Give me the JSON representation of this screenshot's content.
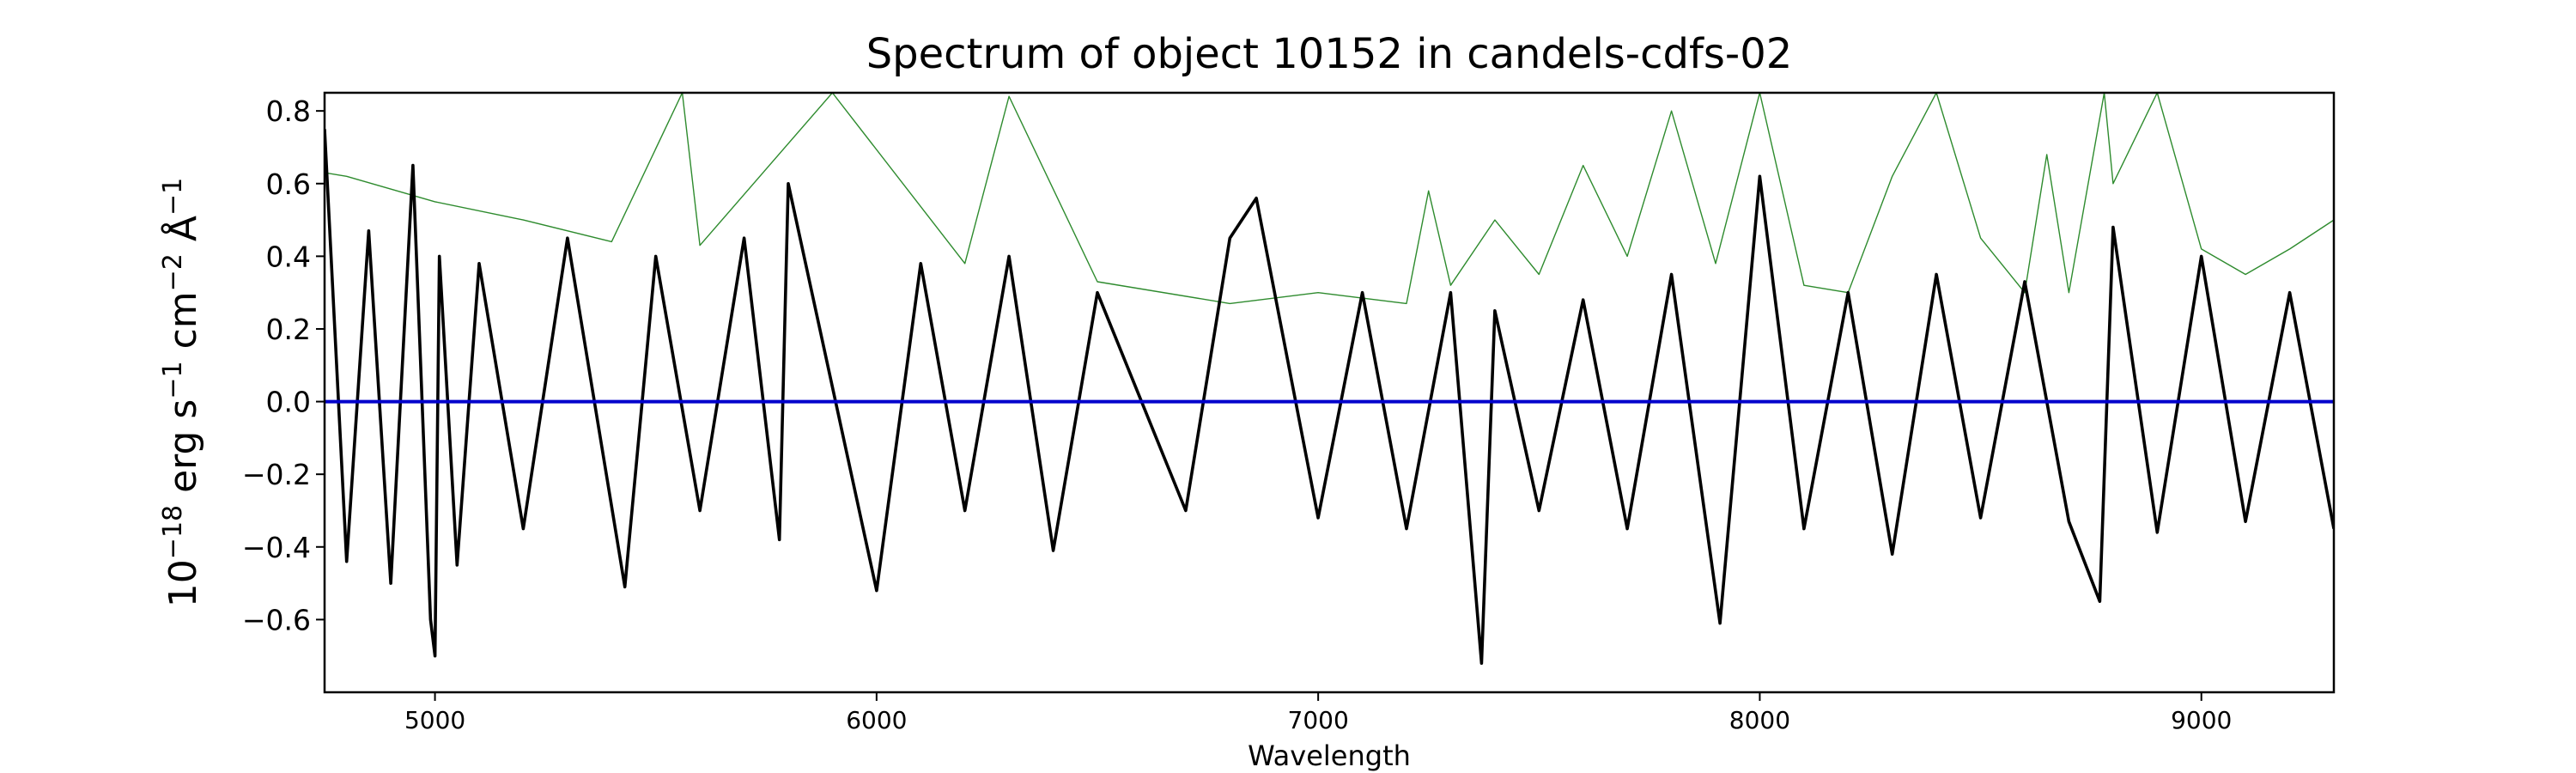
{
  "chart_data": {
    "type": "line",
    "title": "Spectrum of object 10152 in candels-cdfs-02",
    "xlabel": "Wavelength",
    "ylabel": {
      "prefix": "10",
      "exponent": "−18",
      "units": [
        {
          "base": " erg s",
          "sup": "−1"
        },
        {
          "base": " cm",
          "sup": "−2"
        },
        {
          "base": " Å",
          "sup": "−1"
        }
      ]
    },
    "xlim": [
      4750,
      9300
    ],
    "ylim": [
      -0.8,
      0.85
    ],
    "xticks": [
      5000,
      6000,
      7000,
      8000,
      9000
    ],
    "xtick_labels": [
      "5000",
      "6000",
      "7000",
      "8000",
      "9000"
    ],
    "yticks": [
      -0.6,
      -0.4,
      -0.2,
      0.0,
      0.2,
      0.4,
      0.6,
      0.8
    ],
    "ytick_labels": [
      "−0.6",
      "−0.4",
      "−0.2",
      "0.0",
      "0.2",
      "0.4",
      "0.6",
      "0.8"
    ],
    "grid": false,
    "colors": {
      "flux": "#000000",
      "error": "#2e8b2e",
      "zero": "#0000cc"
    },
    "series": [
      {
        "key": "flux",
        "x": [
          4750,
          4800,
          4850,
          4900,
          4950,
          4990,
          5000,
          5010,
          5050,
          5100,
          5200,
          5300,
          5430,
          5500,
          5600,
          5700,
          5780,
          5800,
          6000,
          6100,
          6200,
          6300,
          6400,
          6500,
          6700,
          6800,
          6860,
          7000,
          7100,
          7200,
          7300,
          7370,
          7400,
          7500,
          7600,
          7700,
          7800,
          7910,
          8000,
          8100,
          8200,
          8300,
          8400,
          8500,
          8600,
          8700,
          8770,
          8800,
          8900,
          9000,
          9100,
          9200,
          9300
        ],
        "y": [
          0.75,
          -0.44,
          0.47,
          -0.5,
          0.65,
          -0.6,
          -0.7,
          0.4,
          -0.45,
          0.38,
          -0.35,
          0.45,
          -0.51,
          0.4,
          -0.3,
          0.45,
          -0.38,
          0.6,
          -0.52,
          0.38,
          -0.3,
          0.4,
          -0.41,
          0.3,
          -0.3,
          0.45,
          0.56,
          -0.32,
          0.3,
          -0.35,
          0.3,
          -0.72,
          0.25,
          -0.3,
          0.28,
          -0.35,
          0.35,
          -0.61,
          0.62,
          -0.35,
          0.3,
          -0.42,
          0.35,
          -0.32,
          0.33,
          -0.33,
          -0.55,
          0.48,
          -0.36,
          0.4,
          -0.33,
          0.3,
          -0.35
        ]
      },
      {
        "key": "error",
        "x": [
          4750,
          4800,
          5000,
          5200,
          5400,
          5560,
          5600,
          5900,
          6200,
          6300,
          6500,
          6800,
          7000,
          7200,
          7250,
          7300,
          7400,
          7500,
          7600,
          7700,
          7800,
          7900,
          8000,
          8100,
          8200,
          8300,
          8400,
          8500,
          8600,
          8650,
          8700,
          8780,
          8800,
          8900,
          9000,
          9100,
          9200,
          9300
        ],
        "y": [
          0.63,
          0.62,
          0.55,
          0.5,
          0.44,
          0.85,
          0.43,
          0.85,
          0.38,
          0.84,
          0.33,
          0.27,
          0.3,
          0.27,
          0.58,
          0.32,
          0.5,
          0.35,
          0.65,
          0.4,
          0.8,
          0.38,
          0.85,
          0.32,
          0.3,
          0.62,
          0.85,
          0.45,
          0.3,
          0.68,
          0.3,
          0.85,
          0.6,
          0.85,
          0.42,
          0.35,
          0.42,
          0.5
        ]
      },
      {
        "key": "zero",
        "x": [
          4750,
          9300
        ],
        "y": [
          0,
          0
        ]
      }
    ]
  }
}
